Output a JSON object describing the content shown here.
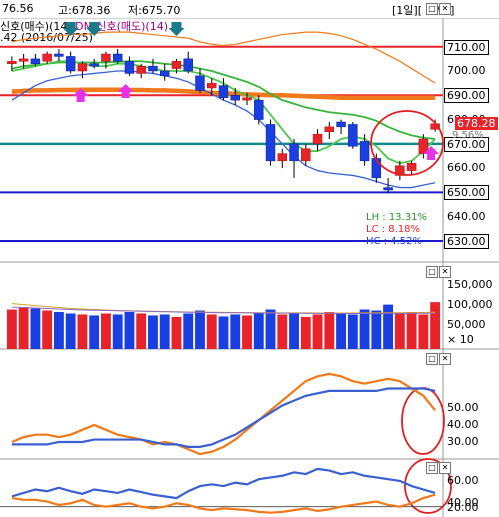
{
  "header": {
    "partial_price": "76.56",
    "high": "고:678.36",
    "low": "저:675.70",
    "page": "[1일][ 1 / 1]"
  },
  "signal_line": {
    "buy_label": "신호(매수)(14)",
    "sell_label": "DMI신호(매도)(14)",
    "date_fragment": ".42 (2016/07/25)"
  },
  "price_axis": [
    "710.00",
    "700.00",
    "690.00",
    "680.00",
    "670.00",
    "660.00",
    "650.00",
    "640.00",
    "630.00"
  ],
  "price_tags": {
    "current": "678.28",
    "line_710": "710.00",
    "line_690": "690.00",
    "line_670": "670.00",
    "line_650": "650.00",
    "line_630": "630.00",
    "pct_partial": "9.56%"
  },
  "range_info": {
    "lh": "LH : 13.31%",
    "lc": "LC :  8.18%",
    "hc": "HC :  4.52%"
  },
  "volume_axis": [
    "150,000",
    "100,000",
    "50,000",
    "× 10"
  ],
  "ind1_axis": [
    "50.00",
    "40.00",
    "30.00"
  ],
  "ind2_axis": [
    "60.00",
    "40.00",
    "20.00"
  ],
  "controls": {
    "panel_buttons": "□ ✕"
  },
  "colors": {
    "up": "#e8232a",
    "down": "#1a3fe0",
    "ma_green": "#37b43c",
    "ma_orange": "#f07a1a",
    "bb_blue": "#3a5fd0",
    "teal_line": "#138a8a",
    "circle": "#e02020"
  },
  "chart_data": [
    {
      "type": "candlestick",
      "candles": [
        {
          "o": 703,
          "h": 706,
          "l": 700,
          "c": 704
        },
        {
          "o": 704,
          "h": 707,
          "l": 701,
          "c": 705
        },
        {
          "o": 705,
          "h": 707,
          "l": 702,
          "c": 703
        },
        {
          "o": 704,
          "h": 708,
          "l": 703,
          "c": 707
        },
        {
          "o": 707,
          "h": 709,
          "l": 704,
          "c": 706
        },
        {
          "o": 706,
          "h": 708,
          "l": 699,
          "c": 700
        },
        {
          "o": 700,
          "h": 704,
          "l": 697,
          "c": 703
        },
        {
          "o": 703,
          "h": 705,
          "l": 701,
          "c": 702
        },
        {
          "o": 704,
          "h": 708,
          "l": 701,
          "c": 707
        },
        {
          "o": 707,
          "h": 709,
          "l": 703,
          "c": 704
        },
        {
          "o": 704,
          "h": 706,
          "l": 698,
          "c": 699
        },
        {
          "o": 699,
          "h": 703,
          "l": 697,
          "c": 702
        },
        {
          "o": 702,
          "h": 705,
          "l": 699,
          "c": 700
        },
        {
          "o": 700,
          "h": 703,
          "l": 696,
          "c": 698
        },
        {
          "o": 701,
          "h": 705,
          "l": 699,
          "c": 704
        },
        {
          "o": 705,
          "h": 708,
          "l": 699,
          "c": 700
        },
        {
          "o": 698,
          "h": 701,
          "l": 691,
          "c": 692
        },
        {
          "o": 693,
          "h": 697,
          "l": 690,
          "c": 695
        },
        {
          "o": 694,
          "h": 697,
          "l": 688,
          "c": 689
        },
        {
          "o": 690,
          "h": 693,
          "l": 686,
          "c": 688
        },
        {
          "o": 688,
          "h": 691,
          "l": 686,
          "c": 689
        },
        {
          "o": 688,
          "h": 690,
          "l": 678,
          "c": 680
        },
        {
          "o": 678,
          "h": 680,
          "l": 661,
          "c": 663
        },
        {
          "o": 663,
          "h": 668,
          "l": 660,
          "c": 666
        },
        {
          "o": 670,
          "h": 672,
          "l": 656,
          "c": 663
        },
        {
          "o": 663,
          "h": 670,
          "l": 661,
          "c": 668
        },
        {
          "o": 670,
          "h": 676,
          "l": 667,
          "c": 674
        },
        {
          "o": 675,
          "h": 679,
          "l": 672,
          "c": 677
        },
        {
          "o": 679,
          "h": 680,
          "l": 674,
          "c": 677
        },
        {
          "o": 678,
          "h": 679,
          "l": 668,
          "c": 669
        },
        {
          "o": 671,
          "h": 674,
          "l": 661,
          "c": 663
        },
        {
          "o": 664,
          "h": 666,
          "l": 654,
          "c": 656
        },
        {
          "o": 652,
          "h": 656,
          "l": 650,
          "c": 651
        },
        {
          "o": 657,
          "h": 663,
          "l": 655,
          "c": 661
        },
        {
          "o": 659,
          "h": 663,
          "l": 657,
          "c": 662
        },
        {
          "o": 666,
          "h": 674,
          "l": 664,
          "c": 672
        },
        {
          "o": 676,
          "h": 680,
          "l": 675,
          "c": 678.28
        }
      ],
      "horizontal_lines": [
        710,
        690,
        670,
        650,
        630
      ],
      "ylim": [
        625,
        725
      ]
    },
    {
      "type": "bar",
      "title": "volume",
      "values": [
        80000,
        85000,
        82000,
        78000,
        75000,
        72000,
        70000,
        68000,
        72000,
        70000,
        75000,
        72000,
        68000,
        70000,
        65000,
        72000,
        78000,
        70000,
        66000,
        70000,
        68000,
        72000,
        80000,
        70000,
        72000,
        65000,
        70000,
        75000,
        72000,
        70000,
        80000,
        78000,
        90000,
        72000,
        75000,
        70000,
        95000
      ],
      "ylim": [
        0,
        150000
      ]
    },
    {
      "type": "line",
      "series": [
        {
          "values": [
            25,
            27,
            28,
            28,
            27,
            28,
            30,
            32,
            30,
            28,
            27,
            26,
            24,
            25,
            24,
            22,
            20,
            21,
            23,
            26,
            30,
            34,
            38,
            42,
            46,
            50,
            52,
            53,
            52,
            50,
            49,
            50,
            51,
            50,
            47,
            44,
            38
          ]
        },
        {
          "values": [
            24,
            24,
            24,
            24,
            25,
            25,
            25,
            26,
            26,
            26,
            26,
            26,
            25,
            24,
            24,
            23,
            23,
            24,
            26,
            28,
            31,
            34,
            37,
            40,
            42,
            44,
            45,
            46,
            46,
            46,
            46,
            46,
            47,
            47,
            47,
            47,
            46
          ]
        }
      ],
      "ylim": [
        18,
        62
      ]
    },
    {
      "type": "line",
      "series": [
        {
          "values": [
            32,
            36,
            40,
            38,
            42,
            38,
            35,
            40,
            38,
            36,
            40,
            37,
            34,
            32,
            30,
            38,
            44,
            46,
            44,
            48,
            46,
            52,
            54,
            56,
            60,
            58,
            64,
            62,
            58,
            60,
            56,
            54,
            52,
            50,
            44,
            40,
            36
          ]
        },
        {
          "values": [
            30,
            28,
            28,
            26,
            22,
            24,
            28,
            22,
            20,
            22,
            24,
            20,
            18,
            20,
            24,
            22,
            18,
            16,
            18,
            17,
            16,
            14,
            13,
            14,
            16,
            18,
            15,
            17,
            20,
            22,
            24,
            26,
            22,
            20,
            24,
            30,
            34
          ]
        }
      ],
      "ylim": [
        8,
        72
      ]
    }
  ]
}
